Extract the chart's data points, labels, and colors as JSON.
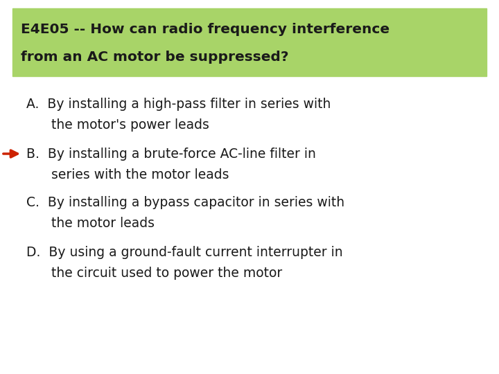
{
  "title_line1": "E4E05 -- How can radio frequency interference",
  "title_line2": "from an AC motor be suppressed?",
  "title_bg_color": "#a8d468",
  "bg_color": "#ffffff",
  "answer_A_line1": "A.  By installing a high-pass filter in series with",
  "answer_A_line2": "      the motor's power leads",
  "answer_B_line1": "B.  By installing a brute-force AC-line filter in",
  "answer_B_line2": "      series with the motor leads",
  "answer_C_line1": "C.  By installing a bypass capacitor in series with",
  "answer_C_line2": "      the motor leads",
  "answer_D_line1": "D.  By using a ground-fault current interrupter in",
  "answer_D_line2": "      the circuit used to power the motor",
  "arrow_color": "#cc2200",
  "text_color": "#1a1a1a",
  "font_size_title": 14.5,
  "font_size_answer": 13.5
}
